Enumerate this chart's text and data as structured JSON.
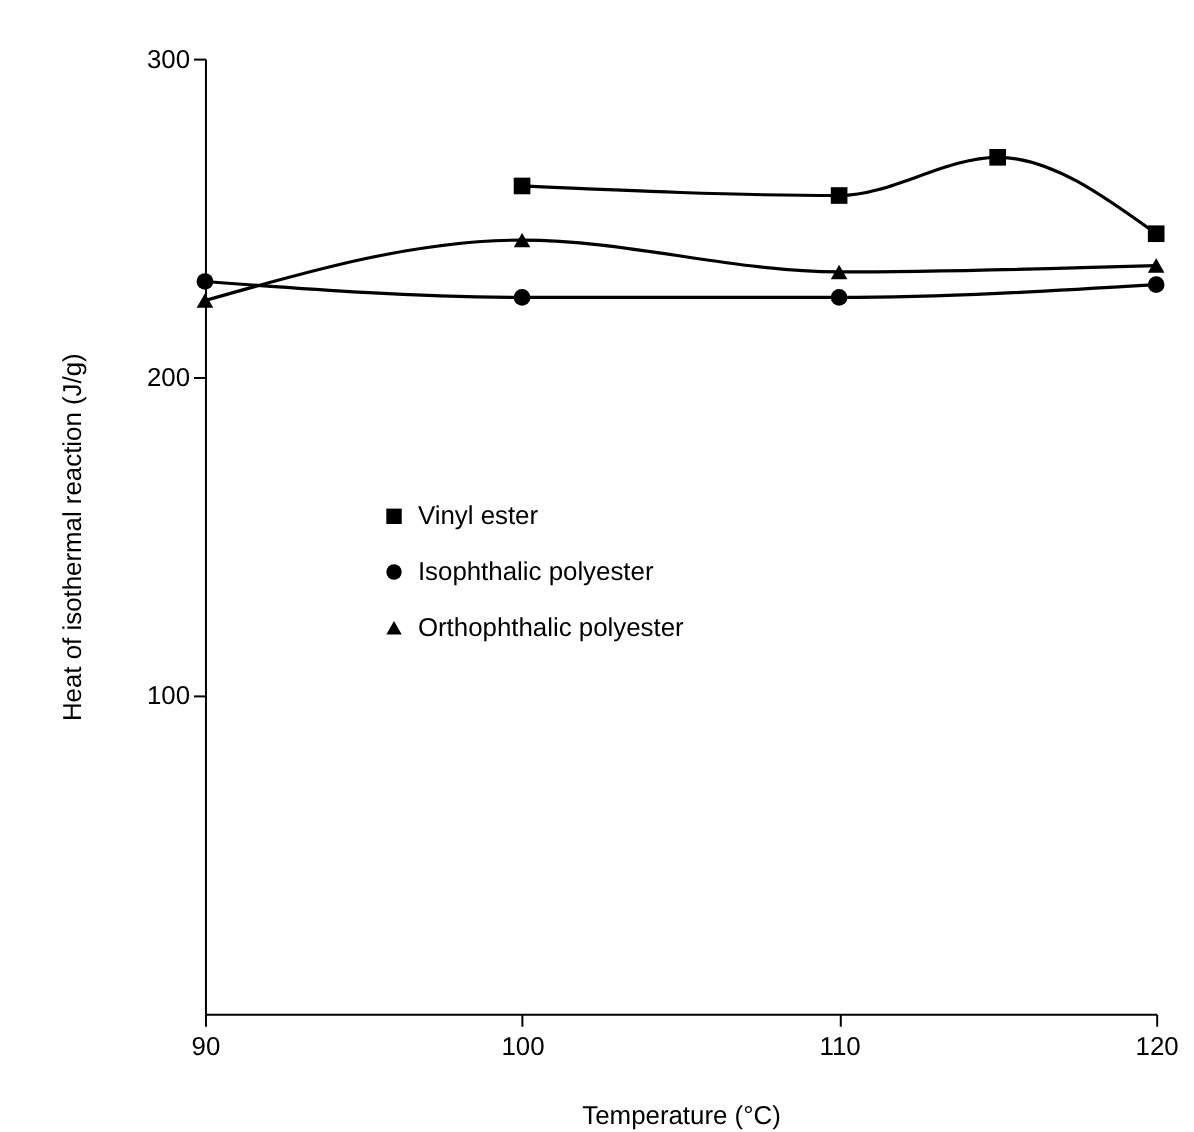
{
  "chart_data": {
    "type": "line",
    "xlabel": "Temperature (°C)",
    "ylabel": "Heat of isothermal reaction (J/g)",
    "xlim": [
      90,
      120
    ],
    "xticks": [
      90,
      100,
      110,
      120
    ],
    "ylim": [
      0,
      300
    ],
    "yticks": [
      100,
      200,
      300
    ],
    "legend": "left",
    "grid": false,
    "line_style": "solid",
    "series": [
      {
        "name": "Vinyl ester",
        "color": "#000000",
        "marker": "square",
        "x": [
          100,
          110,
          115,
          120
        ],
        "values": [
          260,
          257,
          269,
          245
        ]
      },
      {
        "name": "Isophthalic polyester",
        "color": "#000000",
        "marker": "circle",
        "x": [
          90,
          100,
          110,
          120
        ],
        "values": [
          230,
          225,
          225,
          229
        ]
      },
      {
        "name": "Orthophthalic polyester",
        "color": "#000000",
        "marker": "triangle",
        "x": [
          90,
          100,
          110,
          120
        ],
        "values": [
          224,
          243,
          233,
          235
        ]
      }
    ]
  }
}
